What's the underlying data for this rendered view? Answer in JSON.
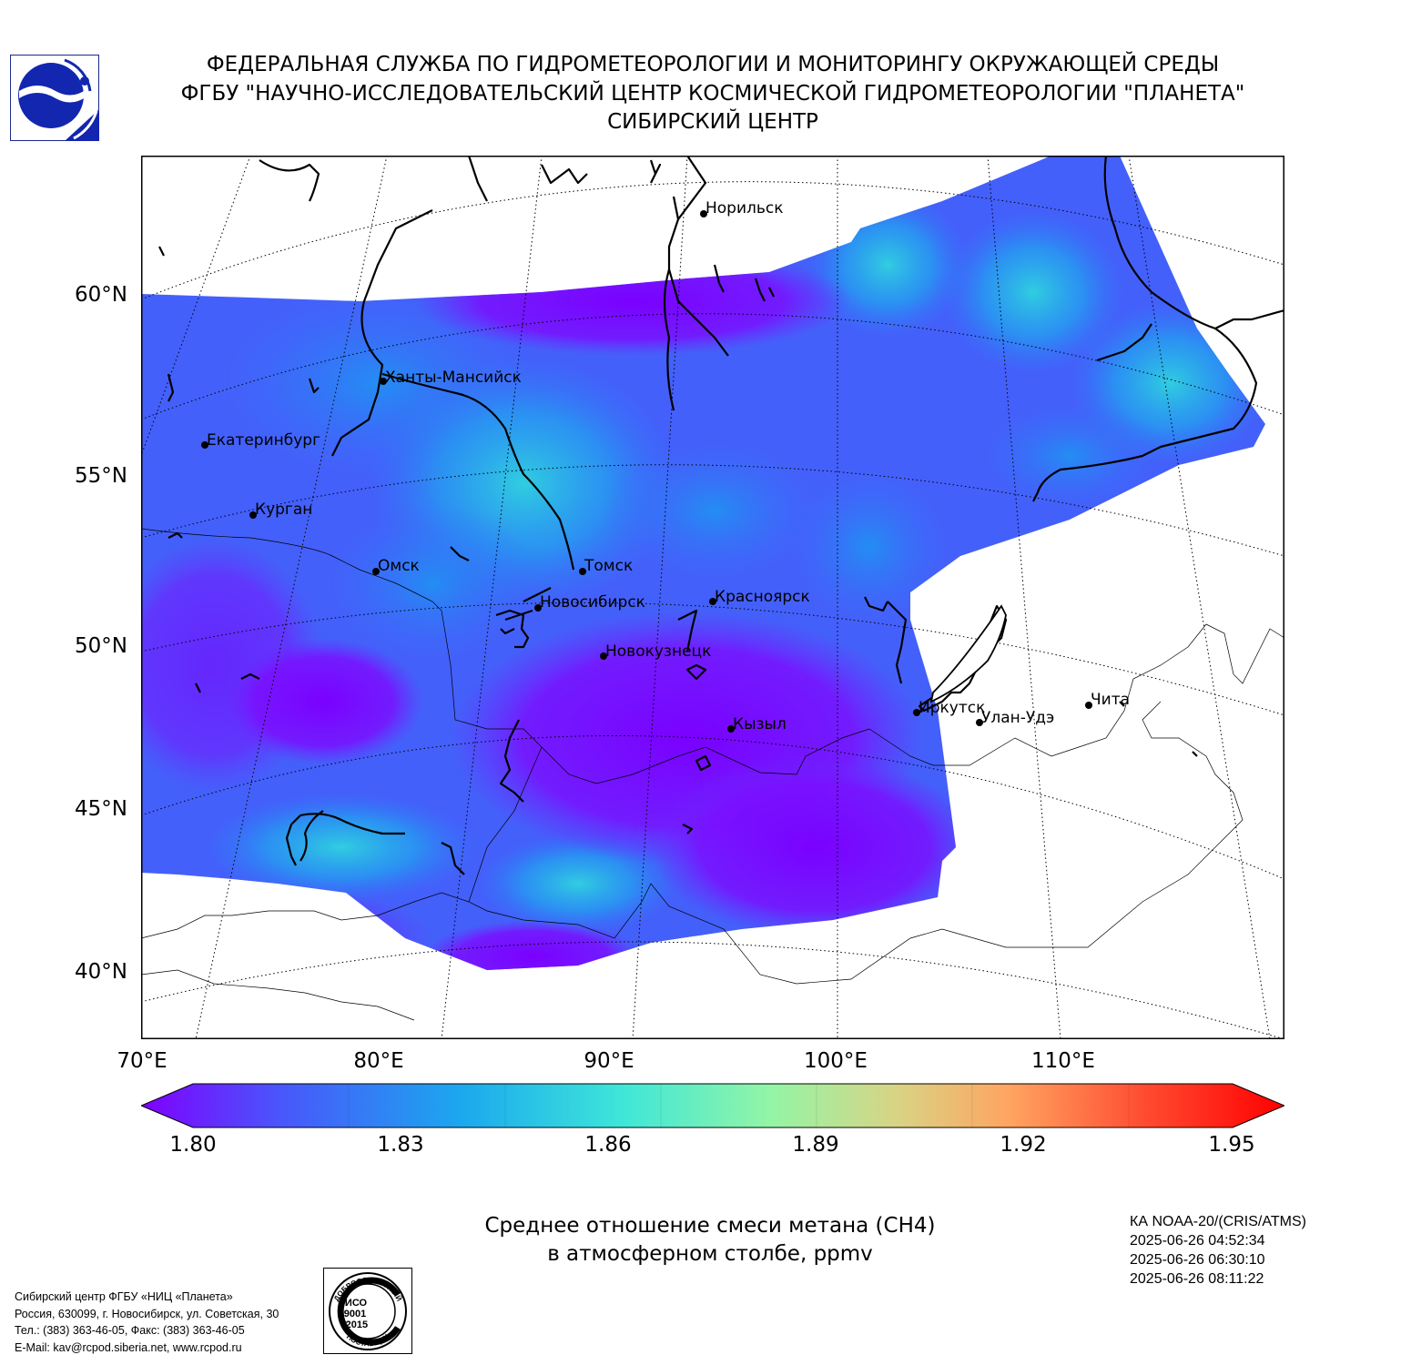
{
  "header": {
    "line1": "ФЕДЕРАЛЬНАЯ СЛУЖБА ПО ГИДРОМЕТЕОРОЛОГИИ И МОНИТОРИНГУ ОКРУЖАЮЩЕЙ СРЕДЫ",
    "line2": "ФГБУ \"НАУЧНО-ИССЛЕДОВАТЕЛЬСКИЙ ЦЕНТР КОСМИЧЕСКОЙ ГИДРОМЕТЕОРОЛОГИИ \"ПЛАНЕТА\"",
    "line3": "СИБИРСКИЙ ЦЕНТР"
  },
  "map": {
    "lat_labels": [
      "60°N",
      "55°N",
      "50°N",
      "45°N",
      "40°N"
    ],
    "lon_labels": [
      "70°E",
      "80°E",
      "90°E",
      "100°E",
      "110°E"
    ],
    "cities": [
      {
        "name": "Норильск"
      },
      {
        "name": "Ханты-Мансийск"
      },
      {
        "name": "Екатеринбург"
      },
      {
        "name": "Курган"
      },
      {
        "name": "Омск"
      },
      {
        "name": "Томск"
      },
      {
        "name": "Новосибирск"
      },
      {
        "name": "Красноярск"
      },
      {
        "name": "Новокузнецк"
      },
      {
        "name": "Иркутск"
      },
      {
        "name": "Улан-Удэ"
      },
      {
        "name": "Чита"
      },
      {
        "name": "Кызыл"
      }
    ]
  },
  "colorbar": {
    "ticks": [
      "1.80",
      "1.83",
      "1.86",
      "1.89",
      "1.92",
      "1.95"
    ],
    "min": 1.8,
    "max": 1.95,
    "colors": [
      "#8000ff",
      "#4a55fb",
      "#1ba8ee",
      "#3ee6d9",
      "#93f5a6",
      "#d8d485",
      "#ffa460",
      "#ff4a30",
      "#ff0000"
    ]
  },
  "parameter": {
    "line1": "Среднее отношение смеси метана (CH4)",
    "line2": "в атмосферном столбе, ppmv"
  },
  "satellite": {
    "name": "КА NOAA-20/(CRIS/ATMS)",
    "times": [
      "2025-06-26 04:52:34",
      "2025-06-26 06:30:10",
      "2025-06-26 08:11:22"
    ]
  },
  "footer": {
    "org": "Сибирский центр ФГБУ «НИЦ «Планета»",
    "address": "Россия, 630099, г. Новосибирск, ул. Советская, 30",
    "phone": "Тел.: (383) 363-46-05, Факс: (383) 363-46-05",
    "email": "E-Mail: kav@rcpod.siberia.net, www.rcpod.ru"
  },
  "iso_badge": {
    "top": "ДОБРОСОВЕСТНЫЙ",
    "line1": "ИСО",
    "line2": "9001",
    "line3": "-2015",
    "bottom": "ПОСТАВЩИК"
  }
}
